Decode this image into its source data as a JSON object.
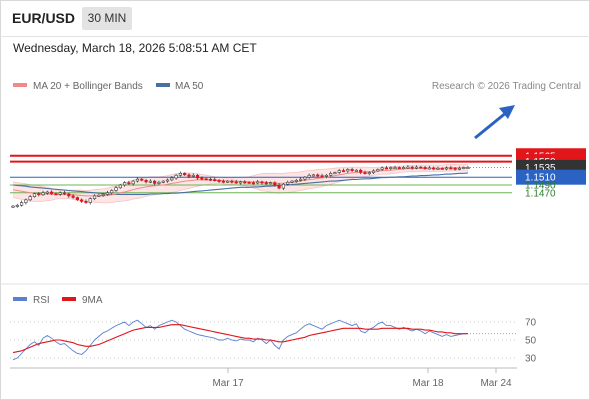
{
  "header": {
    "symbol": "EUR/USD",
    "timeframe": "30 MIN",
    "datetime": "Wednesday, March 18, 2026 5:08:51 AM CET"
  },
  "legend": {
    "ma20_bb": "MA 20 + Bollinger Bands",
    "ma50": "MA 50",
    "credit": "Research © 2026 Trading Central"
  },
  "colors": {
    "resistance": "#e0161b",
    "support_blue": "#2a63c4",
    "support_green": "#6cb456",
    "bollinger_fill": "#fde0e0",
    "ma20": "#f08a8a",
    "ma50": "#4a6fa5",
    "candle": "#e0161b",
    "arrow": "#2a63c4",
    "rsi": "#5b7fd0",
    "rsi_ma": "#e0161b"
  },
  "chart_data": [
    {
      "type": "candlestick",
      "title": "",
      "x_ticks": [
        "Mar 17",
        "Mar 18",
        "Mar 24"
      ],
      "ylim": [
        1.143,
        1.157
      ],
      "grid": false,
      "legend_position": "top-left",
      "series": [
        {
          "name": "MA 20 + Bollinger Bands"
        },
        {
          "name": "MA 50"
        }
      ],
      "levels": [
        {
          "label": "1.1565",
          "value": 1.1565,
          "kind": "resistance"
        },
        {
          "label": "1.1550",
          "value": 1.155,
          "kind": "resistance"
        },
        {
          "label": "1.1535",
          "value": 1.1535,
          "kind": "last-price"
        },
        {
          "label": "1.1510",
          "value": 1.151,
          "kind": "pivot"
        },
        {
          "label": "1.1490",
          "value": 1.149,
          "kind": "support"
        },
        {
          "label": "1.1470",
          "value": 1.147,
          "kind": "support"
        }
      ],
      "close": [
        1.1436,
        1.1438,
        1.1445,
        1.1452,
        1.146,
        1.1468,
        1.1465,
        1.147,
        1.1472,
        1.1468,
        1.1466,
        1.147,
        1.1467,
        1.1462,
        1.1458,
        1.1452,
        1.1448,
        1.1445,
        1.1455,
        1.1462,
        1.1464,
        1.1466,
        1.147,
        1.1476,
        1.1483,
        1.149,
        1.1496,
        1.1493,
        1.15,
        1.1505,
        1.1502,
        1.1498,
        1.15,
        1.1494,
        1.1497,
        1.15,
        1.1503,
        1.1508,
        1.1515,
        1.152,
        1.1516,
        1.1512,
        1.1515,
        1.1508,
        1.1506,
        1.1505,
        1.1504,
        1.1502,
        1.15,
        1.1498,
        1.15,
        1.1498,
        1.1496,
        1.1498,
        1.1497,
        1.1496,
        1.1495,
        1.1498,
        1.1496,
        1.1494,
        1.1496,
        1.149,
        1.1482,
        1.1492,
        1.1497,
        1.15,
        1.1502,
        1.1505,
        1.151,
        1.1515,
        1.1516,
        1.1514,
        1.1512,
        1.1515,
        1.152,
        1.1522,
        1.1527,
        1.1526,
        1.153,
        1.1527,
        1.1528,
        1.1522,
        1.152,
        1.1522,
        1.1526,
        1.153,
        1.1534,
        1.1533,
        1.1535,
        1.1535,
        1.1534,
        1.1535,
        1.1536,
        1.1534,
        1.1536,
        1.1535,
        1.1533,
        1.1534,
        1.1533,
        1.1533,
        1.1532,
        1.1534,
        1.1533,
        1.1532,
        1.1533,
        1.1535,
        1.1535
      ],
      "ma20": [
        1.1478,
        1.1476,
        1.1474,
        1.1472,
        1.147,
        1.1469,
        1.1468,
        1.1467,
        1.1467,
        1.1466,
        1.1466,
        1.1466,
        1.1466,
        1.1466,
        1.1465,
        1.1464,
        1.1463,
        1.1462,
        1.1462,
        1.1462,
        1.1462,
        1.1462,
        1.1463,
        1.1465,
        1.1467,
        1.147,
        1.1472,
        1.1475,
        1.1478,
        1.1481,
        1.1483,
        1.1485,
        1.1487,
        1.1488,
        1.1489,
        1.149,
        1.1492,
        1.1494,
        1.1496,
        1.1498,
        1.15,
        1.1501,
        1.1502,
        1.1503,
        1.1503,
        1.1503,
        1.1503,
        1.1502,
        1.1502,
        1.1501,
        1.15,
        1.15,
        1.15,
        1.1499,
        1.1499,
        1.1498,
        1.1498,
        1.1498,
        1.1497,
        1.1497,
        1.1496,
        1.1495,
        1.1494,
        1.1495,
        1.1496,
        1.1497,
        1.1498,
        1.15,
        1.1502,
        1.1504,
        1.1505,
        1.1507,
        1.1508,
        1.151,
        1.1512,
        1.1514,
        1.1516,
        1.1518,
        1.152,
        1.1521,
        1.1522,
        1.1523,
        1.1524,
        1.1524,
        1.1525,
        1.1526,
        1.1527,
        1.1527,
        1.1528,
        1.1529,
        1.153,
        1.1531,
        1.1532,
        1.1532,
        1.1533,
        1.1533,
        1.1533,
        1.1533,
        1.1533,
        1.1533,
        1.1533,
        1.1534,
        1.1534,
        1.1534,
        1.1534,
        1.1534,
        1.1534
      ],
      "bb_width": [
        0.002,
        0.002,
        0.0021,
        0.0021,
        0.0021,
        0.0021,
        0.002,
        0.0019,
        0.0017,
        0.0015,
        0.0012,
        0.0011,
        0.0011,
        0.0011,
        0.0012,
        0.0013,
        0.0014,
        0.0014,
        0.0015,
        0.0016,
        0.0017,
        0.0018,
        0.0019,
        0.002,
        0.002,
        0.0022,
        0.0023,
        0.0024,
        0.0024,
        0.0025,
        0.0025,
        0.0024,
        0.0024,
        0.0023,
        0.0022,
        0.0022,
        0.0022,
        0.0023,
        0.0023,
        0.0022,
        0.0021,
        0.002,
        0.0018,
        0.0016,
        0.0014,
        0.0012,
        0.001,
        0.0009,
        0.0008,
        0.0008,
        0.0008,
        0.0008,
        0.0009,
        0.001,
        0.0011,
        0.0013,
        0.0016,
        0.0019,
        0.0022,
        0.0023,
        0.0024,
        0.0025,
        0.0025,
        0.0025,
        0.0025,
        0.0025,
        0.0024,
        0.0024,
        0.0024,
        0.0023,
        0.0023,
        0.0023,
        0.0022,
        0.0021,
        0.002,
        0.0019,
        0.0018,
        0.0017,
        0.0016,
        0.0015,
        0.0014,
        0.0013,
        0.0012,
        0.0011,
        0.001,
        0.001,
        0.0009,
        0.0009,
        0.0009,
        0.0009,
        0.0008,
        0.0008,
        0.0008,
        0.0008,
        0.0008,
        0.0008,
        0.0008,
        0.0008,
        0.0008,
        0.0008,
        0.0008,
        0.0008,
        0.0008,
        0.0008,
        0.0008,
        0.0008,
        0.0008
      ],
      "ma50": [
        1.149,
        1.1489,
        1.1488,
        1.1487,
        1.1485,
        1.1484,
        1.1483,
        1.1482,
        1.1481,
        1.148,
        1.1479,
        1.1478,
        1.1477,
        1.1476,
        1.1475,
        1.1474,
        1.1473,
        1.1472,
        1.1471,
        1.147,
        1.1469,
        1.1468,
        1.1467,
        1.1466,
        1.1466,
        1.1466,
        1.1466,
        1.1466,
        1.1466,
        1.1466,
        1.1466,
        1.1466,
        1.1467,
        1.1467,
        1.1467,
        1.1468,
        1.1468,
        1.1469,
        1.1469,
        1.147,
        1.1471,
        1.1472,
        1.1473,
        1.1474,
        1.1475,
        1.1476,
        1.1477,
        1.1478,
        1.1479,
        1.148,
        1.1481,
        1.1482,
        1.1483,
        1.1484,
        1.1484,
        1.1484,
        1.1485,
        1.1485,
        1.1486,
        1.1487,
        1.1487,
        1.1488,
        1.1489,
        1.149,
        1.149,
        1.1491,
        1.1492,
        1.1493,
        1.1494,
        1.1495,
        1.1496,
        1.1497,
        1.1498,
        1.1499,
        1.15,
        1.15,
        1.1501,
        1.1502,
        1.1503,
        1.1504,
        1.1504,
        1.1505,
        1.1506,
        1.1506,
        1.1507,
        1.1508,
        1.1509,
        1.1509,
        1.151,
        1.151,
        1.1511,
        1.1511,
        1.1512,
        1.1513,
        1.1513,
        1.1514,
        1.1514,
        1.1515,
        1.1516,
        1.1516,
        1.1517,
        1.1518,
        1.1518,
        1.1519,
        1.152,
        1.152,
        1.1521
      ]
    },
    {
      "type": "line",
      "title": "",
      "y_ticks": [
        "70",
        "50",
        "30"
      ],
      "ylim": [
        15,
        85
      ],
      "series": [
        {
          "name": "RSI",
          "values": [
            28,
            30,
            35,
            40,
            45,
            48,
            44,
            52,
            55,
            52,
            48,
            45,
            46,
            42,
            38,
            35,
            34,
            38,
            44,
            50,
            54,
            58,
            60,
            63,
            66,
            68,
            70,
            66,
            70,
            72,
            68,
            64,
            66,
            62,
            66,
            68,
            70,
            72,
            70,
            66,
            62,
            60,
            58,
            56,
            55,
            54,
            53,
            52,
            50,
            50,
            52,
            50,
            49,
            51,
            50,
            50,
            48,
            52,
            50,
            46,
            50,
            44,
            40,
            50,
            54,
            56,
            58,
            62,
            66,
            68,
            66,
            64,
            62,
            66,
            68,
            70,
            72,
            70,
            68,
            66,
            68,
            60,
            58,
            62,
            64,
            68,
            70,
            66,
            66,
            64,
            62,
            64,
            62,
            60,
            62,
            60,
            57,
            60,
            58,
            56,
            54,
            56,
            54,
            55,
            56,
            57,
            57
          ]
        },
        {
          "name": "9MA",
          "values": [
            36,
            37,
            38,
            40,
            42,
            44,
            46,
            47,
            48,
            49,
            50,
            50,
            49,
            48,
            47,
            45,
            44,
            43,
            43,
            44,
            45,
            47,
            49,
            51,
            53,
            55,
            57,
            59,
            61,
            62,
            63,
            64,
            64,
            64,
            64,
            65,
            66,
            67,
            67,
            67,
            66,
            65,
            64,
            63,
            62,
            61,
            60,
            59,
            58,
            57,
            56,
            55,
            54,
            53,
            52,
            52,
            51,
            51,
            51,
            50,
            50,
            49,
            48,
            48,
            49,
            50,
            51,
            52,
            53,
            55,
            56,
            57,
            58,
            59,
            60,
            61,
            62,
            63,
            63,
            63,
            63,
            63,
            62,
            62,
            62,
            62,
            63,
            63,
            63,
            63,
            63,
            63,
            63,
            62,
            62,
            62,
            61,
            61,
            60,
            59,
            59,
            58,
            58,
            57,
            57,
            57,
            57
          ]
        }
      ]
    }
  ]
}
